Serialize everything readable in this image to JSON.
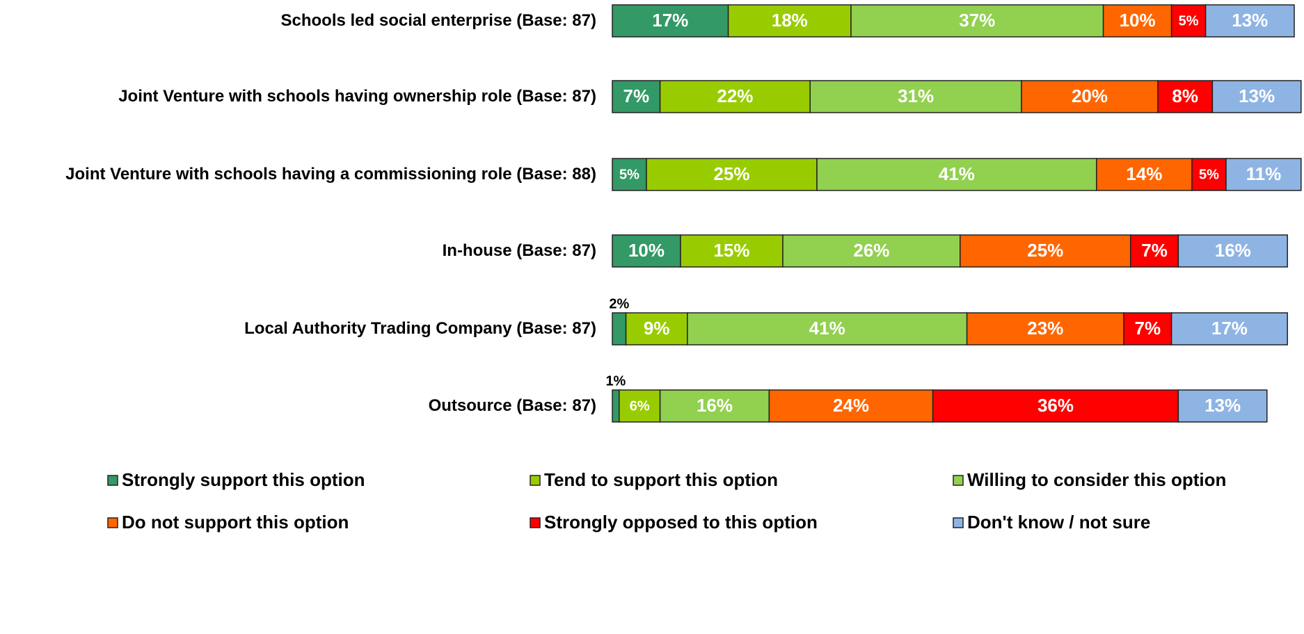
{
  "chart_data": {
    "type": "bar",
    "orientation": "horizontal",
    "stacked": true,
    "categories": [
      "Schools led social enterprise (Base: 87)",
      "Joint Venture with schools having ownership role  (Base: 87)",
      "Joint Venture with schools having a commissioning role (Base: 88)",
      "In-house (Base: 87)",
      "Local Authority Trading Company (Base: 87)",
      "Outsource (Base: 87)"
    ],
    "series": [
      {
        "name": "Strongly support this option",
        "color": "#339966",
        "values": [
          17,
          7,
          5,
          10,
          2,
          1
        ],
        "value_labels": [
          "17%",
          "7%",
          "5%",
          "10%",
          "2%",
          "1%"
        ]
      },
      {
        "name": "Tend to support this option",
        "color": "#99cc00",
        "values": [
          18,
          22,
          25,
          15,
          9,
          6
        ],
        "value_labels": [
          "18%",
          "22%",
          "25%",
          "15%",
          "9%",
          "6%"
        ]
      },
      {
        "name": "Willing to consider this option",
        "color": "#92d050",
        "values": [
          37,
          31,
          41,
          26,
          41,
          16
        ],
        "value_labels": [
          "37%",
          "31%",
          "41%",
          "26%",
          "41%",
          "16%"
        ]
      },
      {
        "name": "Do not support this option",
        "color": "#ff6600",
        "values": [
          10,
          20,
          14,
          25,
          23,
          24
        ],
        "value_labels": [
          "10%",
          "20%",
          "14%",
          "25%",
          "23%",
          "24%"
        ]
      },
      {
        "name": "Strongly opposed to this option",
        "color": "#ff0000",
        "values": [
          5,
          8,
          5,
          7,
          7,
          36
        ],
        "value_labels": [
          "5%",
          "8%",
          "5%",
          "7%",
          "7%",
          "36%"
        ]
      },
      {
        "name": "Don't know / not sure",
        "color": "#8eb4e3",
        "values": [
          13,
          13,
          11,
          16,
          17,
          13
        ],
        "value_labels": [
          "13%",
          "13%",
          "11%",
          "16%",
          "17%",
          "13%"
        ]
      }
    ],
    "legend": "bottom"
  }
}
